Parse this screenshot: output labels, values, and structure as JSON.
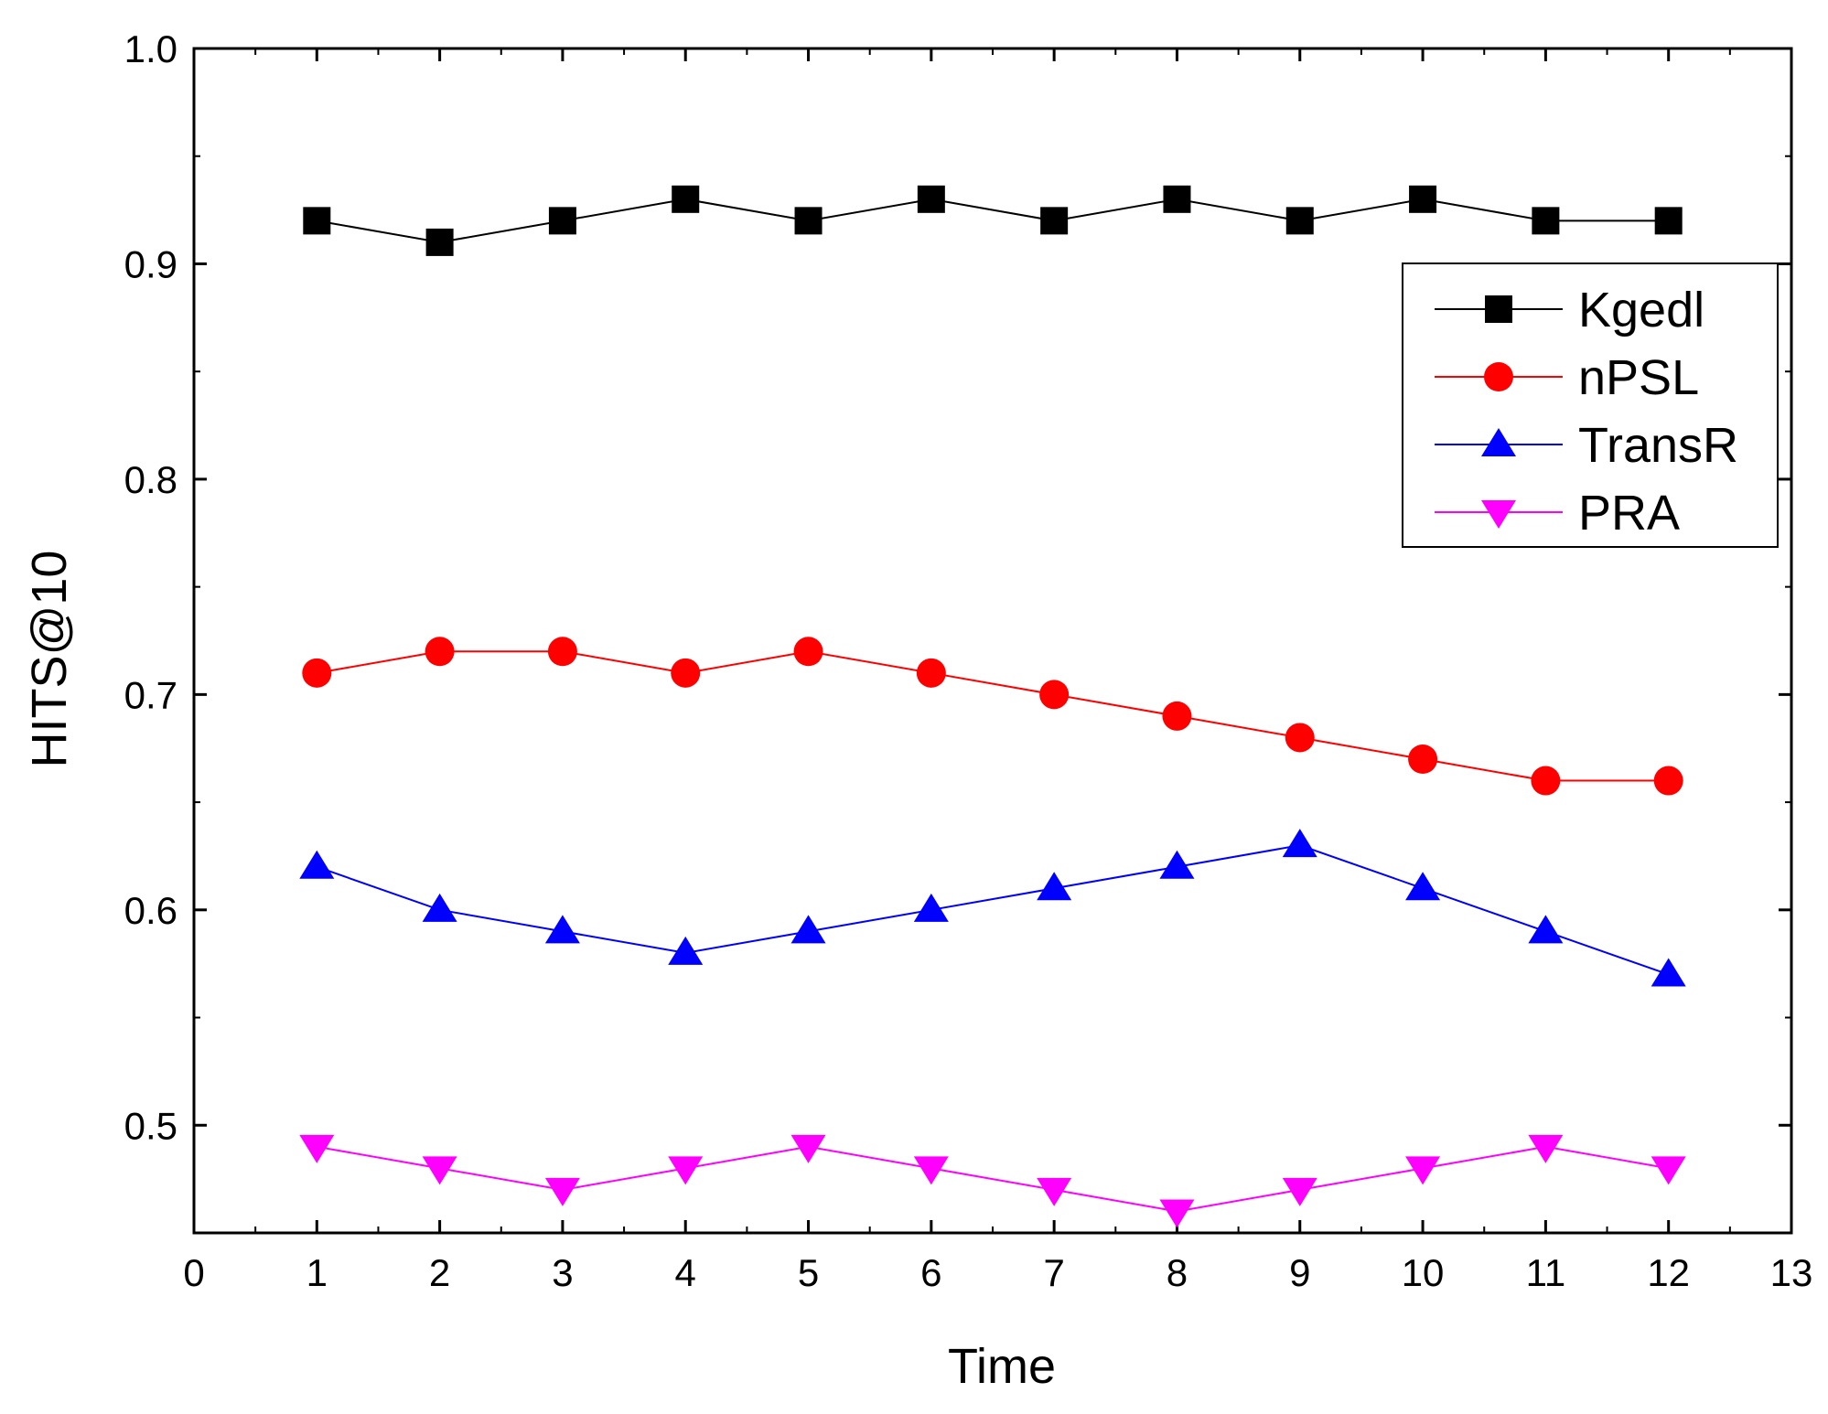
{
  "chart_data": {
    "type": "line",
    "title": "",
    "xlabel": "Time",
    "ylabel": "HITS@10",
    "xlim": [
      0,
      13
    ],
    "ylim": [
      0.45,
      1.0
    ],
    "x_ticks": [
      "0",
      "1",
      "2",
      "3",
      "4",
      "5",
      "6",
      "7",
      "8",
      "9",
      "10",
      "11",
      "12",
      "13"
    ],
    "y_ticks": [
      "0.5",
      "0.6",
      "0.7",
      "0.8",
      "0.9",
      "1.0"
    ],
    "x": [
      1,
      2,
      3,
      4,
      5,
      6,
      7,
      8,
      9,
      10,
      11,
      12
    ],
    "legend_position": "top-right",
    "grid": false,
    "series": [
      {
        "name": "Kgedl",
        "color": "#000000",
        "marker": "square",
        "values": [
          0.92,
          0.91,
          0.92,
          0.93,
          0.92,
          0.93,
          0.92,
          0.93,
          0.92,
          0.93,
          0.92,
          0.92
        ]
      },
      {
        "name": "nPSL",
        "color": "#ff0000",
        "marker": "circle",
        "values": [
          0.71,
          0.72,
          0.72,
          0.71,
          0.72,
          0.71,
          0.7,
          0.69,
          0.68,
          0.67,
          0.66,
          0.66
        ]
      },
      {
        "name": "TransR",
        "color": "#0000ff",
        "marker": "triangle-up",
        "values": [
          0.62,
          0.6,
          0.59,
          0.58,
          0.59,
          0.6,
          0.61,
          0.62,
          0.63,
          0.61,
          0.59,
          0.57
        ]
      },
      {
        "name": "PRA",
        "color": "#ff00ff",
        "marker": "triangle-down",
        "values": [
          0.49,
          0.48,
          0.47,
          0.48,
          0.49,
          0.48,
          0.47,
          0.46,
          0.47,
          0.48,
          0.49,
          0.48
        ]
      }
    ]
  }
}
